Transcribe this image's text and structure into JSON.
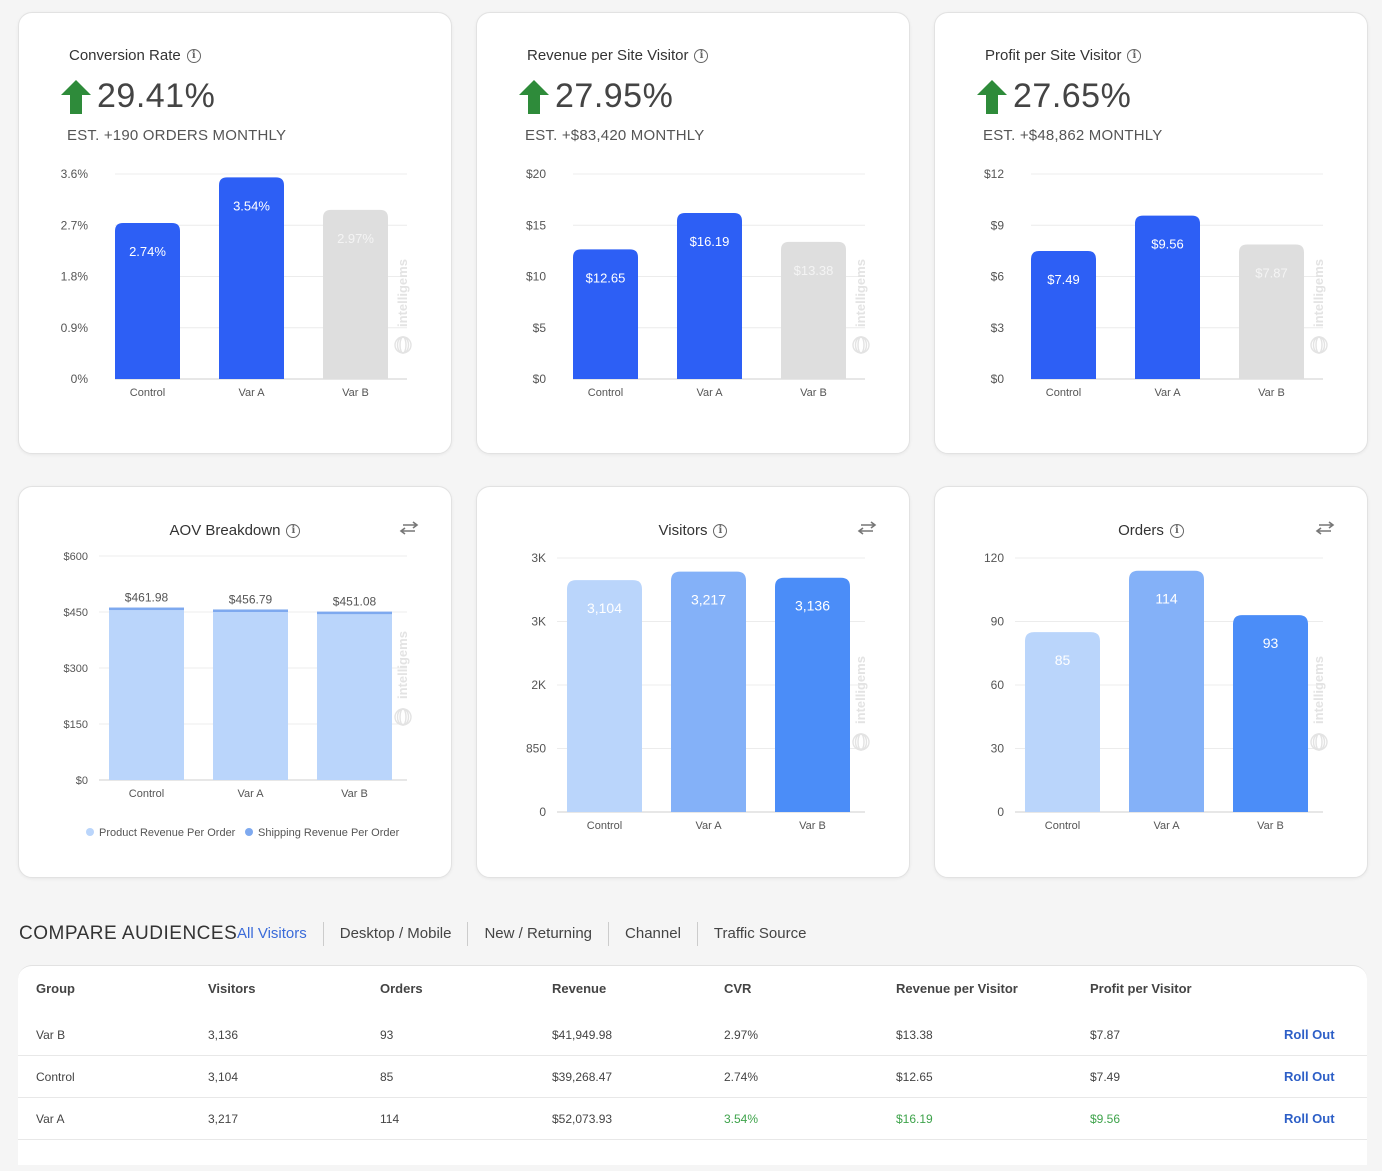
{
  "colors": {
    "blue": "#2d5ff5",
    "grey": "#dedede",
    "light1": "#bad5fb",
    "light2": "#84b1f8",
    "mid": "#4b8df8",
    "shipping": "#7ea9ef",
    "arrow_green": "#2e8b3a",
    "link": "#2d5fc7",
    "positive": "#3ea34b"
  },
  "kpis": [
    {
      "title": "Conversion Rate",
      "value": "29.41%",
      "sub": "EST. +190 ORDERS MONTHLY"
    },
    {
      "title": "Revenue per Site Visitor",
      "value": "27.95%",
      "sub": "EST. +$83,420 MONTHLY"
    },
    {
      "title": "Profit per Site Visitor",
      "value": "27.65%",
      "sub": "EST. +$48,862 MONTHLY"
    }
  ],
  "watermark": "intelligems",
  "chart_data": [
    {
      "type": "bar",
      "title": "Conversion Rate",
      "categories": [
        "Control",
        "Var A",
        "Var B"
      ],
      "values": [
        2.74,
        3.54,
        2.97
      ],
      "labels": [
        "2.74%",
        "3.54%",
        "2.97%"
      ],
      "yticks": [
        "0%",
        "0.9%",
        "1.8%",
        "2.7%",
        "3.6%"
      ],
      "ylim": [
        0,
        3.6
      ],
      "grid": true
    },
    {
      "type": "bar",
      "title": "Revenue per Site Visitor",
      "categories": [
        "Control",
        "Var A",
        "Var B"
      ],
      "values": [
        12.65,
        16.19,
        13.38
      ],
      "labels": [
        "$12.65",
        "$16.19",
        "$13.38"
      ],
      "yticks": [
        "$0",
        "$5",
        "$10",
        "$15",
        "$20"
      ],
      "ylim": [
        0,
        20
      ],
      "grid": true
    },
    {
      "type": "bar",
      "title": "Profit per Site Visitor",
      "categories": [
        "Control",
        "Var A",
        "Var B"
      ],
      "values": [
        7.49,
        9.56,
        7.87
      ],
      "labels": [
        "$7.49",
        "$9.56",
        "$7.87"
      ],
      "yticks": [
        "$0",
        "$3",
        "$6",
        "$9",
        "$12"
      ],
      "ylim": [
        0,
        12
      ],
      "grid": true
    },
    {
      "type": "bar",
      "title": "AOV Breakdown",
      "stacked": true,
      "categories": [
        "Control",
        "Var A",
        "Var B"
      ],
      "series": [
        {
          "name": "Product Revenue Per Order",
          "values": [
            455,
            450,
            444
          ]
        },
        {
          "name": "Shipping Revenue Per Order",
          "values": [
            6.98,
            6.79,
            7.08
          ]
        }
      ],
      "totals": [
        "$461.98",
        "$456.79",
        "$451.08"
      ],
      "yticks": [
        "$0",
        "$150",
        "$300",
        "$450",
        "$600"
      ],
      "ylim": [
        0,
        600
      ],
      "legend": "bottom",
      "grid": true
    },
    {
      "type": "bar",
      "title": "Visitors",
      "categories": [
        "Control",
        "Var A",
        "Var B"
      ],
      "values": [
        3104,
        3217,
        3136
      ],
      "labels": [
        "3,104",
        "3,217",
        "3,136"
      ],
      "yticks": [
        "0",
        "850",
        "2K",
        "3K",
        "3K"
      ],
      "ylim": [
        0,
        3400
      ],
      "grid": true
    },
    {
      "type": "bar",
      "title": "Orders",
      "categories": [
        "Control",
        "Var A",
        "Var B"
      ],
      "values": [
        85,
        114,
        93
      ],
      "labels": [
        "85",
        "114",
        "93"
      ],
      "yticks": [
        "0",
        "30",
        "60",
        "90",
        "120"
      ],
      "ylim": [
        0,
        120
      ],
      "grid": true
    }
  ],
  "compare": {
    "title": "COMPARE AUDIENCES",
    "tabs": [
      "All Visitors",
      "Desktop / Mobile",
      "New / Returning",
      "Channel",
      "Traffic Source"
    ],
    "headers": [
      "Group",
      "Visitors",
      "Orders",
      "Revenue",
      "CVR",
      "Revenue per Visitor",
      "Profit per Visitor"
    ],
    "rows": [
      {
        "cells": [
          "Var B",
          "3,136",
          "93",
          "$41,949.98",
          "2.97%",
          "$13.38",
          "$7.87"
        ],
        "action": "Roll Out"
      },
      {
        "cells": [
          "Control",
          "3,104",
          "85",
          "$39,268.47",
          "2.74%",
          "$12.65",
          "$7.49"
        ],
        "action": "Roll Out"
      },
      {
        "cells": [
          "Var A",
          "3,217",
          "114",
          "$52,073.93",
          "3.54%",
          "$16.19",
          "$9.56"
        ],
        "action": "Roll Out"
      }
    ]
  }
}
